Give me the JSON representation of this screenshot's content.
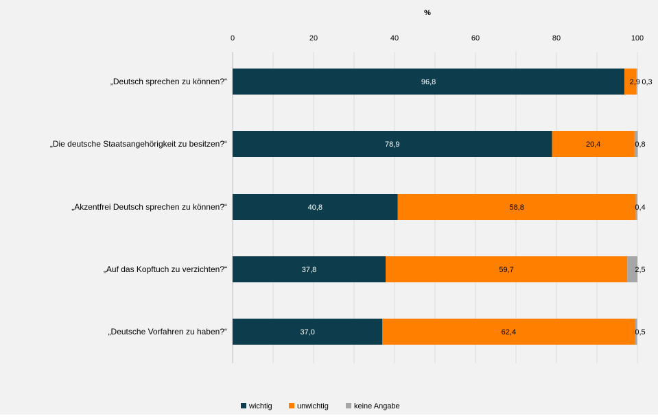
{
  "chart_data": {
    "type": "bar",
    "orientation": "horizontal",
    "stacked": true,
    "title": "%",
    "xlim": [
      0,
      100
    ],
    "x_ticks": [
      "0",
      "20",
      "40",
      "60",
      "80",
      "100"
    ],
    "categories": [
      "„Deutsch sprechen zu können?“",
      "„Die deutsche Staatsangehörigkeit zu besitzen?“",
      "„Akzentfrei Deutsch sprechen zu können?“",
      "„Auf das Kopftuch zu verzichten?“",
      "„Deutsche Vorfahren zu haben?“"
    ],
    "series": [
      {
        "name": "wichtig",
        "color": "#0d3d4c",
        "values": [
          96.8,
          78.9,
          40.8,
          37.8,
          37.0
        ],
        "labels": [
          "96,8",
          "78,9",
          "40,8",
          "37,8",
          "37,0"
        ]
      },
      {
        "name": "unwichtig",
        "color": "#ff7f00",
        "values": [
          2.9,
          20.4,
          58.8,
          59.7,
          62.4
        ],
        "labels": [
          "2,9",
          "20,4",
          "58,8",
          "59,7",
          "62,4"
        ]
      },
      {
        "name": "keine Angabe",
        "color": "#a6a6a6",
        "values": [
          0.3,
          0.8,
          0.4,
          2.5,
          0.5
        ],
        "labels": [
          "0,3",
          "0,8",
          "0,4",
          "2,5",
          "0,5"
        ]
      }
    ],
    "grid": true,
    "legend_position": "bottom-center"
  }
}
